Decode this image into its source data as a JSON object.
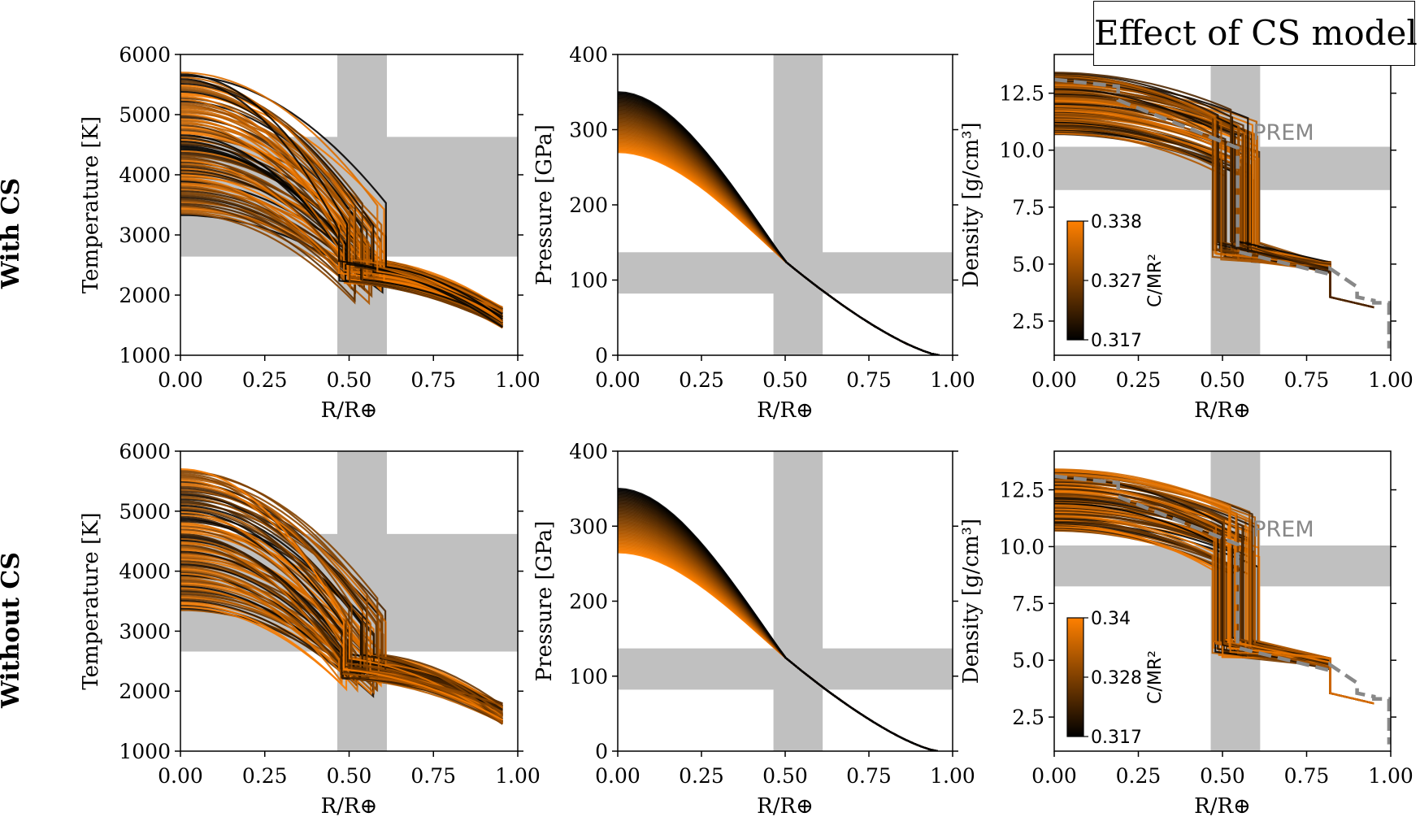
{
  "title": "Effect of CS model",
  "rows": [
    "With CS",
    "Without CS"
  ],
  "colors": {
    "low": "#000000",
    "high": "#ff8000",
    "band": "#c0c0c0",
    "prem": "#888888"
  },
  "chart_data": [
    {
      "type": "line",
      "panel": "temperature",
      "row": "With CS",
      "xlabel": "R/R⊕",
      "ylabel": "Temperature [K]",
      "xlim": [
        0,
        1
      ],
      "ylim": [
        1000,
        6000
      ],
      "xticks": [
        "0.00",
        "0.25",
        "0.50",
        "0.75",
        "1.00"
      ],
      "yticks": [
        "1000",
        "2000",
        "3000",
        "4000",
        "5000",
        "6000"
      ],
      "bands": {
        "x": [
          0.465,
          0.612
        ],
        "y": [
          2640,
          4630
        ]
      },
      "series_family": {
        "center_value_range": [
          3330,
          5700
        ],
        "core_radius_range": [
          0.47,
          0.61
        ],
        "surface_temperature_range": [
          1450,
          1800
        ],
        "surface_radius": 0.955
      }
    },
    {
      "type": "line",
      "panel": "pressure",
      "row": "With CS",
      "xlabel": "R/R⊕",
      "ylabel": "Pressure [GPa]",
      "xlim": [
        0,
        1
      ],
      "ylim": [
        0,
        400
      ],
      "xticks": [
        "0.00",
        "0.25",
        "0.50",
        "0.75",
        "1.00"
      ],
      "yticks": [
        "0",
        "100",
        "200",
        "300",
        "400"
      ],
      "bands": {
        "x": [
          0.465,
          0.612
        ],
        "y": [
          82,
          137
        ]
      },
      "series_family": {
        "center_value_range": [
          270,
          350
        ],
        "surface_radius": 0.96
      }
    },
    {
      "type": "line",
      "panel": "density",
      "row": "With CS",
      "xlabel": "R/R⊕",
      "ylabel": "Density [g/cm³]",
      "xlim": [
        0,
        1
      ],
      "ylim": [
        1,
        14.2
      ],
      "xticks": [
        "0.00",
        "0.25",
        "0.50",
        "0.75",
        "1.00"
      ],
      "yticks": [
        "2.5",
        "5.0",
        "7.5",
        "10.0",
        "12.5"
      ],
      "bands": {
        "x": [
          0.465,
          0.612
        ],
        "y": [
          8.25,
          10.15
        ]
      },
      "annotation": "PREM",
      "prem": {
        "x": [
          0,
          0.19,
          0.19,
          0.545,
          0.545,
          0.82,
          0.82,
          0.9,
          0.9,
          0.95,
          0.95,
          0.995,
          0.995
        ],
        "y": [
          13.1,
          12.8,
          12.2,
          10.1,
          5.55,
          4.55,
          4.8,
          4.0,
          3.55,
          3.4,
          3.3,
          3.3,
          1.3
        ]
      },
      "colorbar": {
        "label": "C/MR²",
        "ticks": [
          "0.338",
          "0.327",
          "0.317"
        ],
        "min": 0.317,
        "max": 0.338
      }
    },
    {
      "type": "line",
      "panel": "temperature",
      "row": "Without CS",
      "xlabel": "R/R⊕",
      "ylabel": "Temperature [K]",
      "xlim": [
        0,
        1
      ],
      "ylim": [
        1000,
        6000
      ],
      "xticks": [
        "0.00",
        "0.25",
        "0.50",
        "0.75",
        "1.00"
      ],
      "yticks": [
        "1000",
        "2000",
        "3000",
        "4000",
        "5000",
        "6000"
      ],
      "bands": {
        "x": [
          0.465,
          0.612
        ],
        "y": [
          2660,
          4620
        ]
      },
      "series_family": {
        "center_value_range": [
          3350,
          5700
        ],
        "core_radius_range": [
          0.47,
          0.61
        ],
        "surface_temperature_range": [
          1450,
          1800
        ],
        "surface_radius": 0.955
      }
    },
    {
      "type": "line",
      "panel": "pressure",
      "row": "Without CS",
      "xlabel": "R/R⊕",
      "ylabel": "Pressure [GPa]",
      "xlim": [
        0,
        1
      ],
      "ylim": [
        0,
        400
      ],
      "xticks": [
        "0.00",
        "0.25",
        "0.50",
        "0.75",
        "1.00"
      ],
      "yticks": [
        "0",
        "100",
        "200",
        "300",
        "400"
      ],
      "bands": {
        "x": [
          0.465,
          0.612
        ],
        "y": [
          82,
          137
        ]
      },
      "series_family": {
        "center_value_range": [
          265,
          350
        ],
        "surface_radius": 0.955
      }
    },
    {
      "type": "line",
      "panel": "density",
      "row": "Without CS",
      "xlabel": "R/R⊕",
      "ylabel": "Density [g/cm³]",
      "xlim": [
        0,
        1
      ],
      "ylim": [
        1,
        14.2
      ],
      "xticks": [
        "0.00",
        "0.25",
        "0.50",
        "0.75",
        "1.00"
      ],
      "yticks": [
        "2.5",
        "5.0",
        "7.5",
        "10.0",
        "12.5"
      ],
      "bands": {
        "x": [
          0.465,
          0.612
        ],
        "y": [
          8.25,
          10.05
        ]
      },
      "annotation": "PREM",
      "prem": {
        "x": [
          0,
          0.19,
          0.19,
          0.545,
          0.545,
          0.82,
          0.82,
          0.9,
          0.9,
          0.95,
          0.95,
          0.995,
          0.995
        ],
        "y": [
          13.1,
          12.8,
          12.2,
          10.1,
          5.55,
          4.55,
          4.8,
          4.0,
          3.55,
          3.4,
          3.3,
          3.3,
          1.3
        ]
      },
      "colorbar": {
        "label": "C/MR²",
        "ticks": [
          "0.34",
          "0.328",
          "0.317"
        ],
        "min": 0.317,
        "max": 0.34
      }
    }
  ]
}
